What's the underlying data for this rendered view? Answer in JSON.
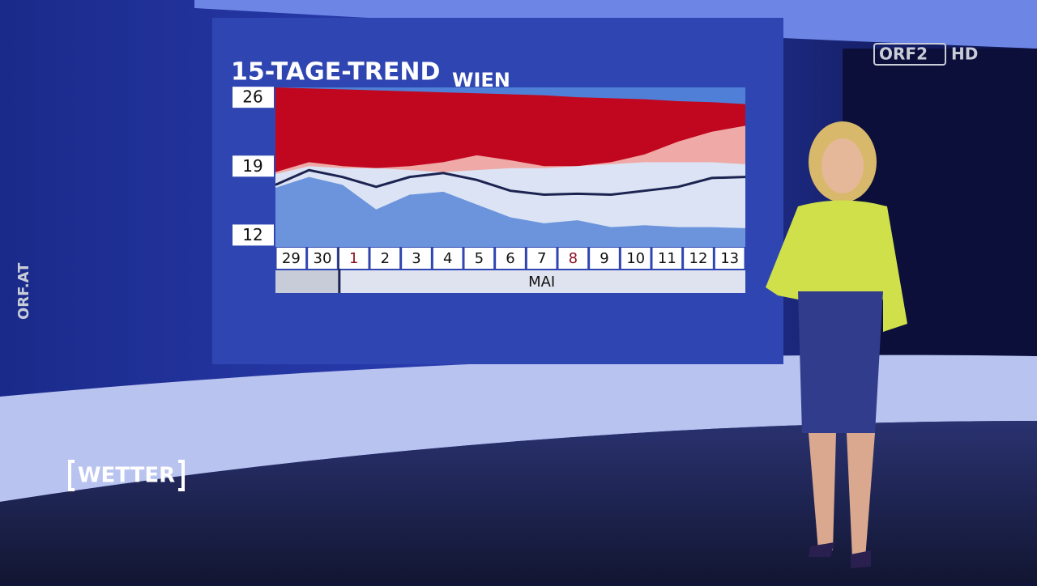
{
  "chart_data": {
    "type": "band",
    "title": "15-TAGE-TREND",
    "subtitle": "WIEN",
    "categories": [
      "29",
      "30",
      "1",
      "2",
      "3",
      "4",
      "5",
      "6",
      "7",
      "8",
      "9",
      "10",
      "11",
      "12",
      "13"
    ],
    "category_colors": [
      "#111111",
      "#111111",
      "#8a1020",
      "#111111",
      "#111111",
      "#111111",
      "#111111",
      "#111111",
      "#111111",
      "#8a1020",
      "#111111",
      "#111111",
      "#111111",
      "#111111",
      "#111111"
    ],
    "month": "MAI",
    "ylim": [
      10.8,
      27
    ],
    "yticks": [
      12,
      19,
      26
    ],
    "series": [
      {
        "style": "area",
        "color": "#c0071f",
        "values": [
          27.0,
          26.9,
          26.8,
          26.7,
          26.6,
          26.5,
          26.4,
          26.3,
          26.2,
          26.0,
          25.9,
          25.8,
          25.6,
          25.5,
          25.3
        ]
      },
      {
        "style": "area",
        "color": "#efa9a6",
        "values": [
          18.4,
          19.4,
          19.0,
          18.8,
          19.0,
          19.4,
          20.1,
          19.6,
          19.0,
          19.0,
          19.4,
          20.2,
          21.5,
          22.5,
          23.1
        ]
      },
      {
        "style": "area",
        "color": "#dbe3f4",
        "values": [
          18.2,
          19.0,
          18.8,
          18.8,
          18.6,
          18.4,
          18.6,
          18.8,
          18.8,
          19.0,
          19.2,
          19.4,
          19.4,
          19.4,
          19.2
        ]
      },
      {
        "style": "area",
        "color": "#6b94dc",
        "values": [
          16.8,
          17.9,
          17.1,
          14.6,
          16.1,
          16.4,
          15.1,
          13.8,
          13.2,
          13.5,
          12.8,
          13.0,
          12.8,
          12.8,
          12.7
        ]
      },
      {
        "style": "line",
        "color": "#1c2350",
        "values": [
          17.1,
          18.6,
          17.9,
          16.9,
          17.9,
          18.3,
          17.6,
          16.5,
          16.1,
          16.2,
          16.1,
          16.5,
          16.9,
          17.8,
          17.9
        ]
      }
    ]
  },
  "overlay": {
    "channel": "ORF2",
    "hd": "HD",
    "site": "ORF.AT",
    "show": "WETTER"
  }
}
